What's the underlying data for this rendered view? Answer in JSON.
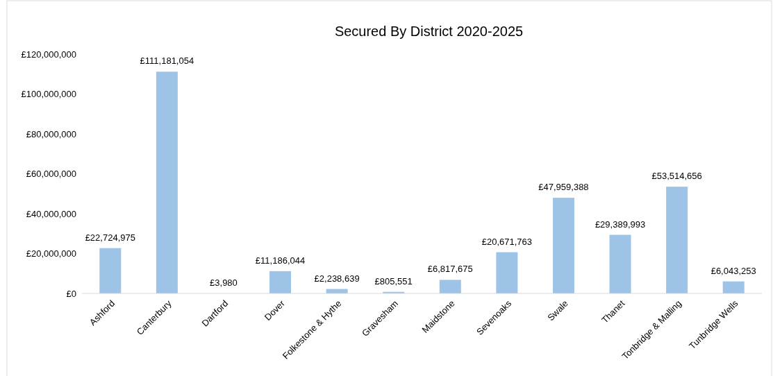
{
  "chart_data": {
    "type": "bar",
    "title": "Secured By District 2020-2025",
    "categories": [
      "Ashford",
      "Canterbury",
      "Dartford",
      "Dover",
      "Folkestone & Hythe",
      "Gravesham",
      "Maidstone",
      "Sevenoaks",
      "Swale",
      "Thanet",
      "Tonbridge & Malling",
      "Tunbridge Wells"
    ],
    "values": [
      22724975,
      111181054,
      3980,
      11186044,
      2238639,
      805551,
      6817675,
      20671763,
      47959388,
      29389993,
      53514656,
      6043253
    ],
    "value_labels": [
      "£22,724,975",
      "£111,181,054",
      "£3,980",
      "£11,186,044",
      "£2,238,639",
      "£805,551",
      "£6,817,675",
      "£20,671,763",
      "£47,959,388",
      "£29,389,993",
      "£53,514,656",
      "£6,043,253"
    ],
    "color": "#9dc3e6",
    "ylim": [
      0,
      120000000
    ],
    "yticks": [
      {
        "value": 0,
        "label": "£0"
      },
      {
        "value": 20000000,
        "label": "£20,000,000"
      },
      {
        "value": 40000000,
        "label": "£40,000,000"
      },
      {
        "value": 60000000,
        "label": "£60,000,000"
      },
      {
        "value": 80000000,
        "label": "£80,000,000"
      },
      {
        "value": 100000000,
        "label": "£100,000,000"
      },
      {
        "value": 120000000,
        "label": "£120,000,000"
      }
    ],
    "grid": false
  }
}
